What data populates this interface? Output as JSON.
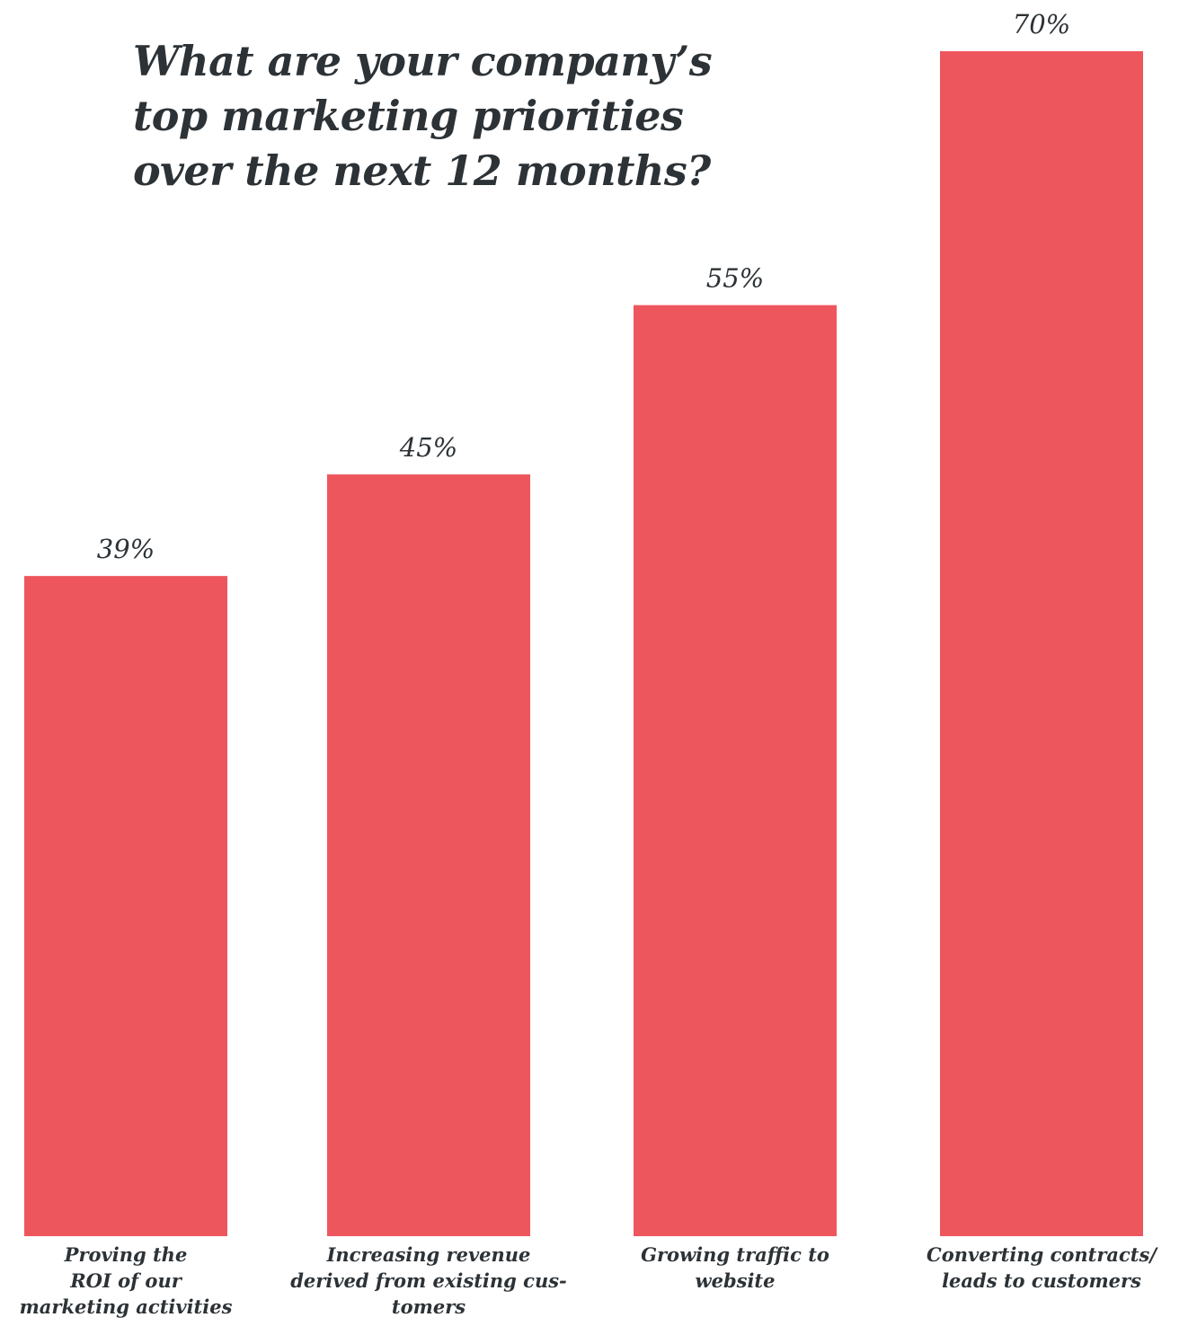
{
  "chart_data": {
    "type": "bar",
    "title_lines": [
      "What are your company’s",
      "top marketing priorities",
      "over the next 12 months?"
    ],
    "categories": [
      "Proving the ROI of our marketing activities",
      "Increasing revenue derived from existing customers",
      "Growing traffic to website",
      "Converting contracts/ leads to customers"
    ],
    "category_label_lines": [
      [
        "Proving the",
        "ROI of our",
        "marketing activities"
      ],
      [
        "Increasing revenue",
        "derived from existing cus-",
        "tomers"
      ],
      [
        "Growing traffic to",
        "website"
      ],
      [
        "Converting contracts/",
        "leads to customers"
      ]
    ],
    "values": [
      39,
      45,
      55,
      70
    ],
    "value_labels": [
      "39%",
      "45%",
      "55%",
      "70%"
    ],
    "unit": "%",
    "ylim": [
      0,
      70
    ],
    "grid": false,
    "legend": "none",
    "bar_color": "#ee565e"
  }
}
